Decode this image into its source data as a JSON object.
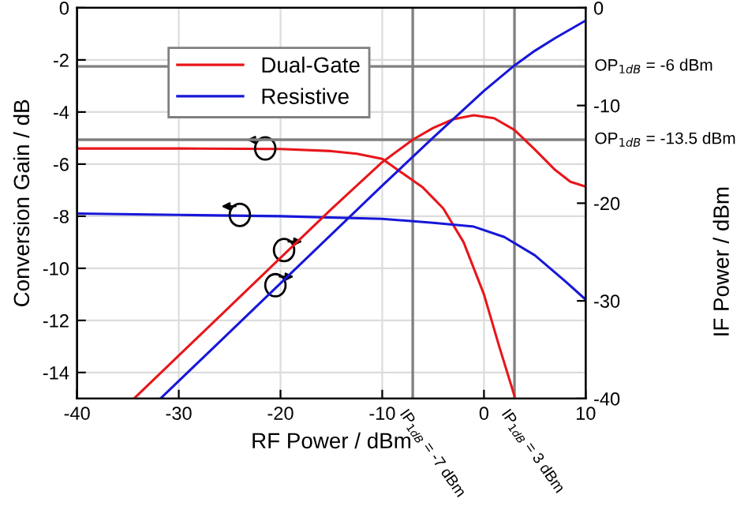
{
  "chart_data": {
    "type": "line",
    "xlabel": "RF Power / dBm",
    "ylabel": "Conversion Gain / dB",
    "y2label": "IF Power / dBm",
    "xlim": [
      -40,
      10
    ],
    "xticks": [
      -40,
      -30,
      -20,
      -10,
      0,
      10
    ],
    "ylim": [
      -15,
      0
    ],
    "yticks": [
      -14,
      -12,
      -10,
      -8,
      -6,
      -4,
      -2,
      0
    ],
    "y2lim": [
      -40,
      0
    ],
    "y2ticks": [
      -40,
      -30,
      -20,
      -10,
      0
    ],
    "grid": true,
    "legend": "top left",
    "line_style": "solid",
    "marker": "none",
    "series": [
      {
        "name": "Dual-Gate",
        "color": "#e8161b",
        "x": [
          -40,
          -30,
          -20,
          -15,
          -12.5,
          -10,
          -6,
          -4,
          -2,
          0,
          1.5,
          3
        ],
        "values": [
          -5.4,
          -5.4,
          -5.42,
          -5.5,
          -5.6,
          -5.8,
          -6.9,
          -7.7,
          -9,
          -11,
          -13,
          -14.9
        ]
      },
      {
        "name": "Resistive",
        "color": "#1717d9",
        "x": [
          -40,
          -30,
          -20,
          -10,
          -5,
          -1,
          2,
          5,
          8,
          10
        ],
        "values": [
          -7.9,
          -7.95,
          -8.0,
          -8.1,
          -8.25,
          -8.4,
          -8.8,
          -9.5,
          -10.5,
          -11.2
        ]
      },
      {
        "color": "#e8161b",
        "axis": "y2",
        "x": [
          -34.4,
          -20,
          -15,
          -10,
          -7,
          -5,
          -3,
          -1,
          1,
          3,
          5,
          7,
          8.5,
          10
        ],
        "values": [
          -40,
          -25.6,
          -20.6,
          -15.8,
          -13.5,
          -12.3,
          -11.4,
          -11,
          -11.3,
          -12.5,
          -14.5,
          -16.6,
          -17.8,
          -18.3
        ]
      },
      {
        "color": "#1717d9",
        "axis": "y2",
        "x": [
          -31.8,
          -20,
          -10,
          -5,
          0,
          3,
          5,
          7,
          10
        ],
        "values": [
          -40,
          -28.2,
          -18.2,
          -13.3,
          -8.5,
          -5.9,
          -4.4,
          -3.1,
          -1.3
        ]
      }
    ],
    "ref_lines": [
      {
        "axis": "y2",
        "value": -6,
        "label": "OP$_{1dB}$ = -6 dBm",
        "color": "#808080"
      },
      {
        "axis": "y2",
        "value": -13.5,
        "label": "OP$_{1dB}$ = -13.5 dBm",
        "color": "#808080"
      },
      {
        "axis": "x",
        "value": -7,
        "label": "IP$_{1dB}$ = -7 dBm",
        "color": "#808080"
      },
      {
        "axis": "x",
        "value": 3,
        "label": "IP$_{1dB}$ = 3 dBm",
        "color": "#808080"
      }
    ]
  }
}
